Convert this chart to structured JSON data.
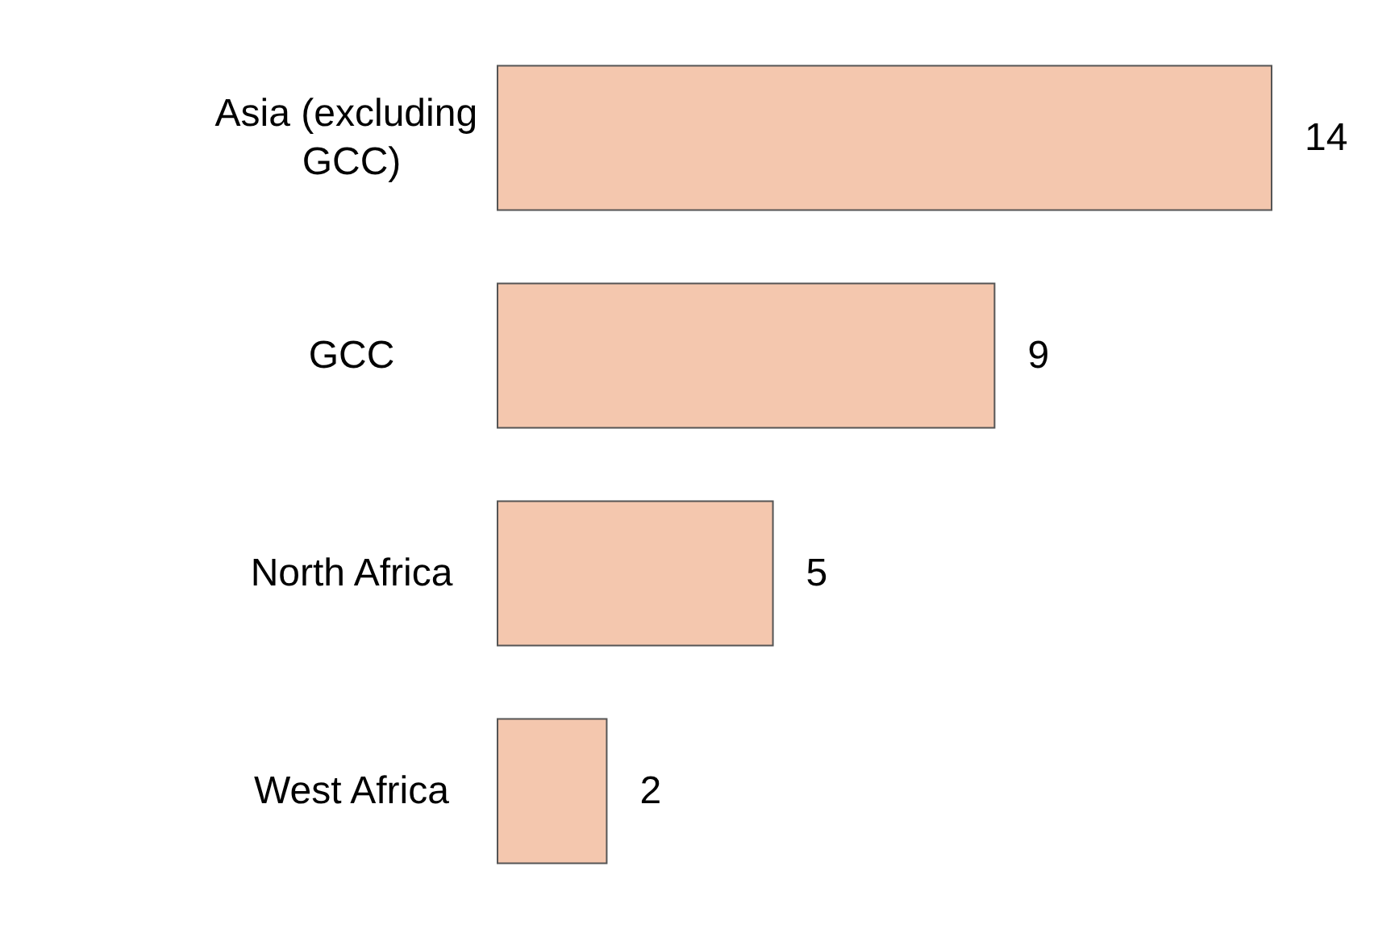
{
  "chart_data": {
    "type": "bar",
    "orientation": "horizontal",
    "categories": [
      "Asia (excluding GCC)",
      "GCC",
      "North Africa",
      "West Africa"
    ],
    "values": [
      14,
      9,
      5,
      2
    ],
    "color": "#f4c7ae",
    "data_labels": true
  }
}
